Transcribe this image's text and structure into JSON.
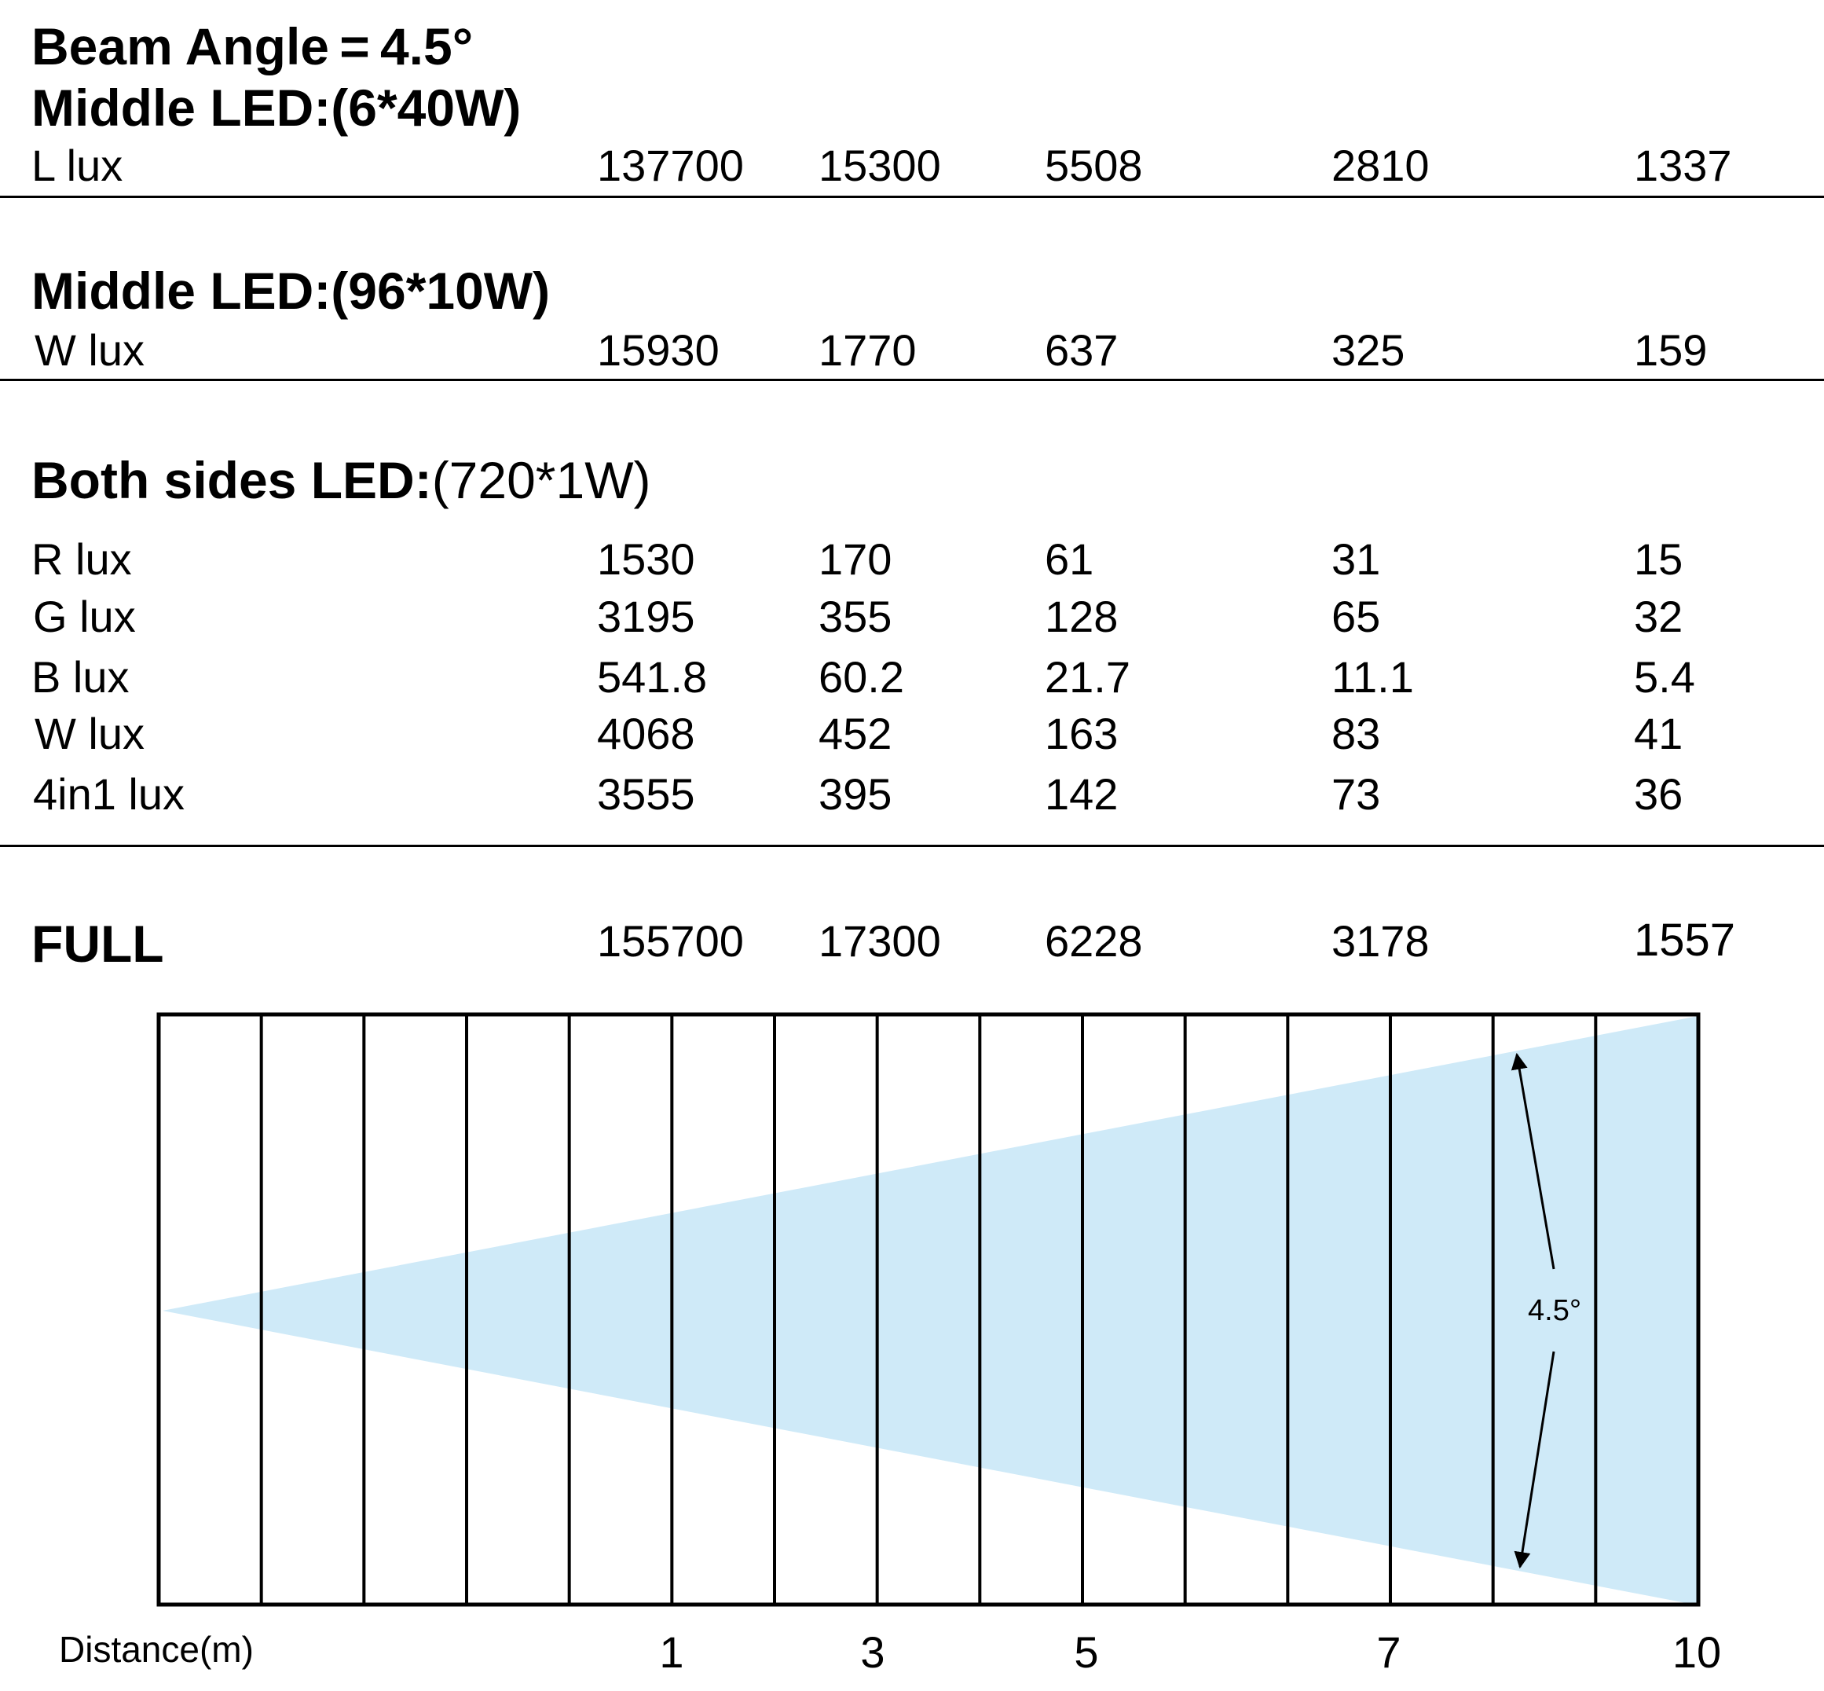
{
  "header": {
    "beam_angle": "Beam Angle = 4.5°",
    "middle_led_1": "Middle LED:(6*40W)"
  },
  "section_l": {
    "row": {
      "label": "L lux",
      "values": [
        "137700",
        "15300",
        "5508",
        "2810",
        "1337"
      ]
    }
  },
  "section_w": {
    "title": "Middle LED:(96*10W)",
    "row": {
      "label": "W lux",
      "values": [
        "15930",
        "1770",
        "637",
        "325",
        "159"
      ]
    }
  },
  "section_sides": {
    "title_bold": "Both sides LED:",
    "title_rest": "(720*1W)",
    "rows": [
      {
        "label": "R lux",
        "values": [
          "1530",
          "170",
          "61",
          "31",
          "15"
        ]
      },
      {
        "label": "G lux",
        "values": [
          "3195",
          "355",
          "128",
          "65",
          "32"
        ]
      },
      {
        "label": "B lux",
        "values": [
          "541.8",
          "60.2",
          "21.7",
          "11.1",
          "5.4"
        ]
      },
      {
        "label": "W lux",
        "values": [
          "4068",
          "452",
          "163",
          "83",
          "41"
        ]
      },
      {
        "label": "4in1 lux",
        "values": [
          "3555",
          "395",
          "142",
          "73",
          "36"
        ]
      }
    ]
  },
  "section_full": {
    "label": "FULL",
    "values": [
      "155700",
      "17300",
      "6228",
      "3178",
      "1557"
    ]
  },
  "diagram": {
    "angle_label": "4.5°",
    "distance_label": "Distance(m)",
    "distance_ticks": [
      "1",
      "3",
      "5",
      "7",
      "10"
    ],
    "beam_color": "#cfeaf8",
    "line_color": "#000000"
  }
}
